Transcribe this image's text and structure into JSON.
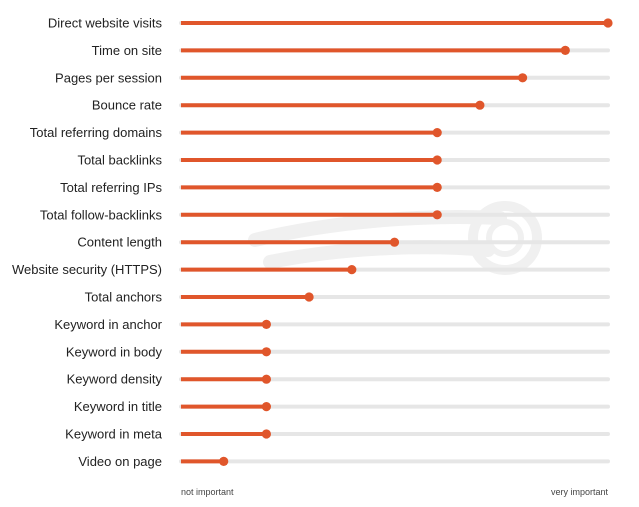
{
  "chart_data": {
    "type": "bar",
    "orientation": "horizontal",
    "categories": [
      "Direct website visits",
      "Time on site",
      "Pages per session",
      "Bounce rate",
      "Total referring domains",
      "Total backlinks",
      "Total referring IPs",
      "Total follow-backlinks",
      "Content length",
      "Website security (HTTPS)",
      "Total anchors",
      "Keyword in anchor",
      "Keyword in body",
      "Keyword density",
      "Keyword in title",
      "Keyword in meta",
      "Video on page"
    ],
    "values": [
      1.0,
      0.9,
      0.8,
      0.7,
      0.6,
      0.6,
      0.6,
      0.6,
      0.5,
      0.4,
      0.3,
      0.2,
      0.2,
      0.2,
      0.2,
      0.2,
      0.1
    ],
    "xlim": [
      0,
      1
    ],
    "axis_min_label": "not important",
    "axis_max_label": "very important",
    "colors": {
      "bar": "#e0562b",
      "track": "#e6e6e6",
      "text": "#222222",
      "watermark": "#f2f2f2"
    },
    "grid": false
  }
}
